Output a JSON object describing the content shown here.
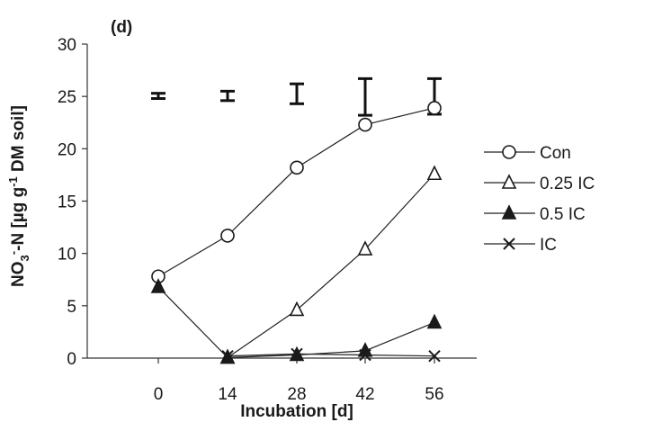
{
  "chart_data": {
    "type": "line",
    "panel_label": "(d)",
    "xlabel": "Incubation [d]",
    "ylabel": {
      "prefix": "NO",
      "sub": "3",
      "sup1": "-",
      "middle": "-N [µg g",
      "sup2": "-1",
      "suffix": " DM soil]"
    },
    "x": [
      0,
      14,
      28,
      42,
      56
    ],
    "x_ticks": [
      "0",
      "14",
      "28",
      "42",
      "56"
    ],
    "ylim": [
      0,
      30
    ],
    "y_ticks": [
      "0",
      "5",
      "10",
      "15",
      "20",
      "25",
      "30"
    ],
    "grid": false,
    "legend_position": "right",
    "series": [
      {
        "name": "Con",
        "marker": "circle-open",
        "values": [
          7.8,
          11.7,
          18.2,
          22.3,
          23.9
        ]
      },
      {
        "name": "0.25 IC",
        "marker": "triangle-open",
        "values": [
          null,
          0.05,
          4.6,
          10.4,
          17.6
        ]
      },
      {
        "name": "0.5 IC",
        "marker": "triangle-filled",
        "values": [
          6.8,
          0.05,
          0.3,
          0.7,
          3.4
        ]
      },
      {
        "name": "IC",
        "marker": "cross",
        "values": [
          null,
          0.2,
          0.4,
          0.3,
          0.2
        ]
      }
    ],
    "lsd_bars": [
      {
        "x": 0,
        "low": 24.8,
        "high": 25.3
      },
      {
        "x": 14,
        "low": 24.6,
        "high": 25.5
      },
      {
        "x": 28,
        "low": 24.3,
        "high": 26.2
      },
      {
        "x": 42,
        "low": 23.2,
        "high": 26.7
      },
      {
        "x": 56,
        "low": 23.3,
        "high": 26.7
      }
    ],
    "colors": {
      "line": "#222222",
      "marker_stroke": "#1a1a1a",
      "marker_fill_filled": "#1a1a1a",
      "marker_fill_open": "#ffffff"
    }
  }
}
